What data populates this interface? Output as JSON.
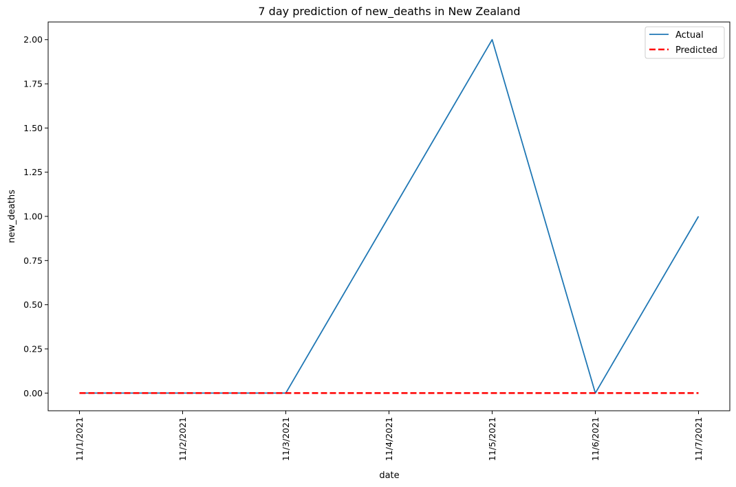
{
  "chart_data": {
    "type": "line",
    "title": "7 day prediction of new_deaths in New Zealand",
    "xlabel": "date",
    "ylabel": "new_deaths",
    "categories": [
      "11/1/2021",
      "11/2/2021",
      "11/3/2021",
      "11/4/2021",
      "11/5/2021",
      "11/6/2021",
      "11/7/2021"
    ],
    "ylim": [
      -0.1,
      2.1
    ],
    "yticks": [
      "0.00",
      "0.25",
      "0.50",
      "0.75",
      "1.00",
      "1.25",
      "1.50",
      "1.75",
      "2.00"
    ],
    "series": [
      {
        "name": "Actual",
        "values": [
          0,
          0,
          0,
          1,
          2,
          0,
          1
        ],
        "color": "#1f77b4",
        "style": "solid"
      },
      {
        "name": "Predicted",
        "values": [
          0,
          0,
          0,
          0,
          0,
          0,
          0
        ],
        "color": "#ff0000",
        "style": "dashed"
      }
    ],
    "legend_position": "top-right",
    "grid": false
  }
}
